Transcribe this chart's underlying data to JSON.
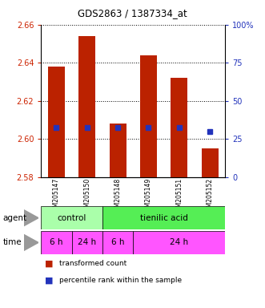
{
  "title": "GDS2863 / 1387334_at",
  "samples": [
    "GSM205147",
    "GSM205150",
    "GSM205148",
    "GSM205149",
    "GSM205151",
    "GSM205152"
  ],
  "bar_tops": [
    2.638,
    2.654,
    2.608,
    2.644,
    2.632,
    2.595
  ],
  "bar_base": 2.58,
  "blue_values": [
    2.606,
    2.606,
    2.606,
    2.606,
    2.606,
    2.604
  ],
  "ylim_left": [
    2.58,
    2.66
  ],
  "ylim_right": [
    0,
    100
  ],
  "yticks_left": [
    2.58,
    2.6,
    2.62,
    2.64,
    2.66
  ],
  "yticks_right": [
    0,
    25,
    50,
    75,
    100
  ],
  "bar_color": "#bb2200",
  "blue_color": "#2233bb",
  "grid_color": "#000000",
  "control_color": "#aaffaa",
  "tienilic_color": "#55ee55",
  "time_color": "#ff55ff",
  "legend_red": "transformed count",
  "legend_blue": "percentile rank within the sample",
  "tick_color_left": "#cc2200",
  "tick_color_right": "#2233bb",
  "bg_color": "#ffffff",
  "plot_bg": "#ffffff",
  "arrow_color": "#999999"
}
